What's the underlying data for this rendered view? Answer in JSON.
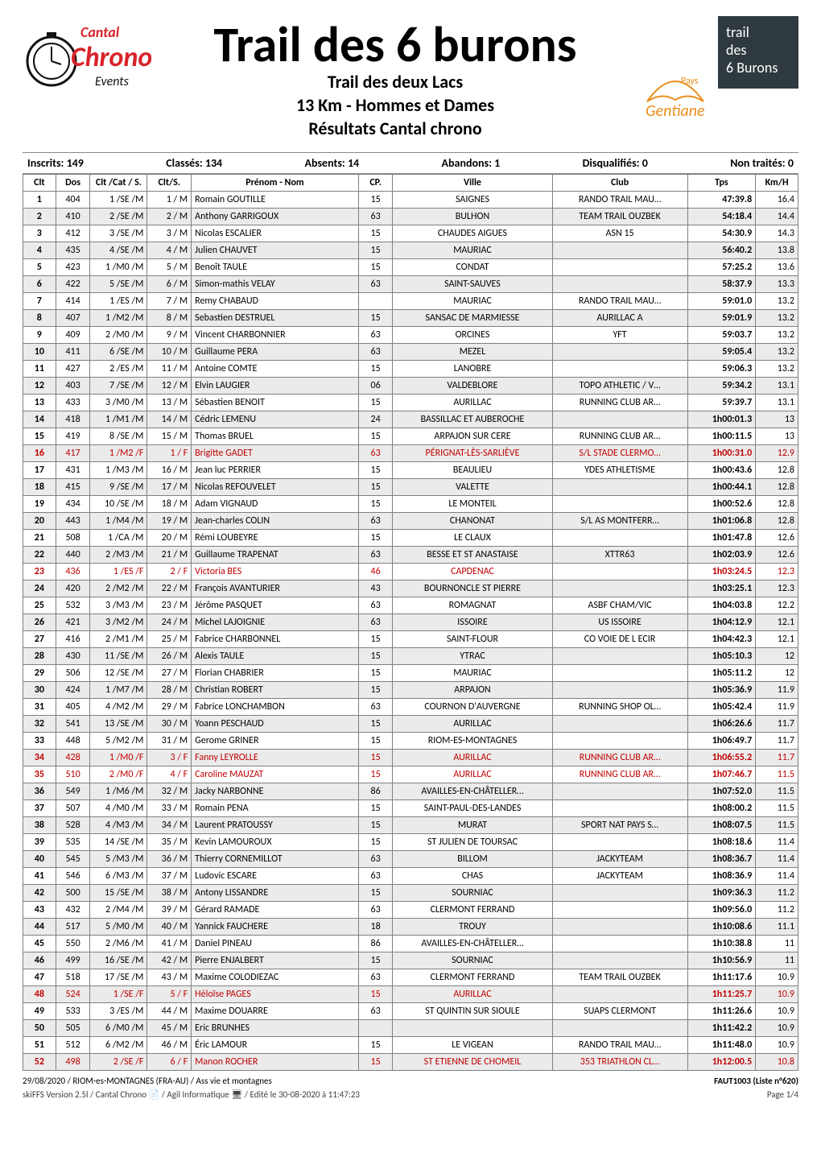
{
  "colors": {
    "text": "#000000",
    "shade_row": "#ebebeb",
    "red_text": "#c00000",
    "grid_border": "#808080",
    "logo_left_red": "#d8232a",
    "logo_left_black": "#111111",
    "logo_right_gentiane_text": "#e98f1d",
    "logo_right_trail_bg": "#2e3a3f",
    "logo_right_trail_text": "#ffffff"
  },
  "header": {
    "title": "Trail des 6 burons",
    "subtitle1": "Trail des deux Lacs",
    "subtitle2": "13 Km - Hommes et Dames",
    "subtitle3": "Résultats Cantal chrono",
    "logo_left": {
      "line1": "Cantal",
      "line2": "Chrono",
      "line3": "Events"
    },
    "logo_right_gentiane": {
      "top": "Pays",
      "main": "Gentiane"
    },
    "logo_right_trail": {
      "l1": "trail",
      "l2": "des",
      "l3": "6 Burons"
    }
  },
  "meta": {
    "inscrits_label": "Inscrits:",
    "inscrits_val": "149",
    "classes_label": "Classés:",
    "classes_val": "134",
    "absents_label": "Absents:",
    "absents_val": "14",
    "abandons_label": "Abandons:",
    "abandons_val": "1",
    "disq_label": "Disqualifiés:",
    "disq_val": "0",
    "nontr_label": "Non traités:",
    "nontr_val": "0"
  },
  "table": {
    "headers": {
      "clt": "Clt",
      "dos": "Dos",
      "catS": "Clt /Cat / S.",
      "cltS": "Clt/S.",
      "name": "Prénom - Nom",
      "cp": "CP.",
      "ville": "Ville",
      "club": "Club",
      "tps": "Tps",
      "kmh": "Km/H"
    },
    "column_align": {
      "clt": "center",
      "dos": "center",
      "catS": "right",
      "cltS": "right",
      "name": "left",
      "cp": "center",
      "ville": "center",
      "club": "center",
      "tps": "right",
      "kmh": "right"
    },
    "rows": [
      {
        "clt": "1",
        "dos": "404",
        "catS": "1 /SE /M",
        "cltS": "1 / M",
        "name": "Romain GOUTILLE",
        "cp": "15",
        "ville": "SAIGNES",
        "club": "RANDO TRAIL MAU…",
        "tps": "47:39.8",
        "kmh": "16.4",
        "red": false
      },
      {
        "clt": "2",
        "dos": "410",
        "catS": "2 /SE /M",
        "cltS": "2 / M",
        "name": "Anthony GARRIGOUX",
        "cp": "63",
        "ville": "BULHON",
        "club": "TEAM TRAIL OUZBEK",
        "tps": "54:18.4",
        "kmh": "14.4",
        "red": false
      },
      {
        "clt": "3",
        "dos": "412",
        "catS": "3 /SE /M",
        "cltS": "3 / M",
        "name": "Nicolas ESCALIER",
        "cp": "15",
        "ville": "CHAUDES AIGUES",
        "club": "ASN 15",
        "tps": "54:30.9",
        "kmh": "14.3",
        "red": false
      },
      {
        "clt": "4",
        "dos": "435",
        "catS": "4 /SE /M",
        "cltS": "4 / M",
        "name": "Julien CHAUVET",
        "cp": "15",
        "ville": "MAURIAC",
        "club": "",
        "tps": "56:40.2",
        "kmh": "13.8",
        "red": false
      },
      {
        "clt": "5",
        "dos": "423",
        "catS": "1 /M0 /M",
        "cltS": "5 / M",
        "name": "Benoît TAULE",
        "cp": "15",
        "ville": "CONDAT",
        "club": "",
        "tps": "57:25.2",
        "kmh": "13.6",
        "red": false
      },
      {
        "clt": "6",
        "dos": "422",
        "catS": "5 /SE /M",
        "cltS": "6 / M",
        "name": "Simon-mathis VELAY",
        "cp": "63",
        "ville": "SAINT-SAUVES",
        "club": "",
        "tps": "58:37.9",
        "kmh": "13.3",
        "red": false
      },
      {
        "clt": "7",
        "dos": "414",
        "catS": "1 /ES /M",
        "cltS": "7 / M",
        "name": "Remy CHABAUD",
        "cp": "",
        "ville": "MAURIAC",
        "club": "RANDO TRAIL MAU…",
        "tps": "59:01.0",
        "kmh": "13.2",
        "red": false
      },
      {
        "clt": "8",
        "dos": "407",
        "catS": "1 /M2 /M",
        "cltS": "8 / M",
        "name": "Sebastien DESTRUEL",
        "cp": "15",
        "ville": "SANSAC DE MARMIESSE",
        "club": "AURILLAC A",
        "tps": "59:01.9",
        "kmh": "13.2",
        "red": false
      },
      {
        "clt": "9",
        "dos": "409",
        "catS": "2 /M0 /M",
        "cltS": "9 / M",
        "name": "Vincent CHARBONNIER",
        "cp": "63",
        "ville": "ORCINES",
        "club": "YFT",
        "tps": "59:03.7",
        "kmh": "13.2",
        "red": false
      },
      {
        "clt": "10",
        "dos": "411",
        "catS": "6 /SE /M",
        "cltS": "10 / M",
        "name": "Guillaume PERA",
        "cp": "63",
        "ville": "MEZEL",
        "club": "",
        "tps": "59:05.4",
        "kmh": "13.2",
        "red": false
      },
      {
        "clt": "11",
        "dos": "427",
        "catS": "2 /ES /M",
        "cltS": "11 / M",
        "name": "Antoine COMTE",
        "cp": "15",
        "ville": "LANOBRE",
        "club": "",
        "tps": "59:06.3",
        "kmh": "13.2",
        "red": false
      },
      {
        "clt": "12",
        "dos": "403",
        "catS": "7 /SE /M",
        "cltS": "12 / M",
        "name": "Elvin LAUGIER",
        "cp": "06",
        "ville": "VALDEBLORE",
        "club": "TOPO ATHLETIC / V…",
        "tps": "59:34.2",
        "kmh": "13.1",
        "red": false
      },
      {
        "clt": "13",
        "dos": "433",
        "catS": "3 /M0 /M",
        "cltS": "13 / M",
        "name": "Sébastien BENOIT",
        "cp": "15",
        "ville": "AURILLAC",
        "club": "RUNNING CLUB AR…",
        "tps": "59:39.7",
        "kmh": "13.1",
        "red": false
      },
      {
        "clt": "14",
        "dos": "418",
        "catS": "1 /M1 /M",
        "cltS": "14 / M",
        "name": "Cédric LEMENU",
        "cp": "24",
        "ville": "BASSILLAC ET AUBEROCHE",
        "club": "",
        "tps": "1h00:01.3",
        "kmh": "13",
        "red": false
      },
      {
        "clt": "15",
        "dos": "419",
        "catS": "8 /SE /M",
        "cltS": "15 / M",
        "name": "Thomas BRUEL",
        "cp": "15",
        "ville": "ARPAJON SUR CERE",
        "club": "RUNNING CLUB AR…",
        "tps": "1h00:11.5",
        "kmh": "13",
        "red": false
      },
      {
        "clt": "16",
        "dos": "417",
        "catS": "1 /M2 /F",
        "cltS": "1 / F",
        "name": "Brigitte GADET",
        "cp": "63",
        "ville": "PÉRIGNAT-LÈS-SARLIÈVE",
        "club": "S/L STADE CLERMO…",
        "tps": "1h00:31.0",
        "kmh": "12.9",
        "red": true
      },
      {
        "clt": "17",
        "dos": "431",
        "catS": "1 /M3 /M",
        "cltS": "16 / M",
        "name": "Jean luc PERRIER",
        "cp": "15",
        "ville": "BEAULIEU",
        "club": "YDES ATHLETISME",
        "tps": "1h00:43.6",
        "kmh": "12.8",
        "red": false
      },
      {
        "clt": "18",
        "dos": "415",
        "catS": "9 /SE /M",
        "cltS": "17 / M",
        "name": "Nicolas REFOUVELET",
        "cp": "15",
        "ville": "VALETTE",
        "club": "",
        "tps": "1h00:44.1",
        "kmh": "12.8",
        "red": false
      },
      {
        "clt": "19",
        "dos": "434",
        "catS": "10 /SE /M",
        "cltS": "18 / M",
        "name": "Adam VIGNAUD",
        "cp": "15",
        "ville": "LE MONTEIL",
        "club": "",
        "tps": "1h00:52.6",
        "kmh": "12.8",
        "red": false
      },
      {
        "clt": "20",
        "dos": "443",
        "catS": "1 /M4 /M",
        "cltS": "19 / M",
        "name": "Jean-charles COLIN",
        "cp": "63",
        "ville": "CHANONAT",
        "club": "S/L AS MONTFERR…",
        "tps": "1h01:06.8",
        "kmh": "12.8",
        "red": false
      },
      {
        "clt": "21",
        "dos": "508",
        "catS": "1 /CA /M",
        "cltS": "20 / M",
        "name": "Rémi LOUBEYRE",
        "cp": "15",
        "ville": "LE CLAUX",
        "club": "",
        "tps": "1h01:47.8",
        "kmh": "12.6",
        "red": false
      },
      {
        "clt": "22",
        "dos": "440",
        "catS": "2 /M3 /M",
        "cltS": "21 / M",
        "name": "Guillaume TRAPENAT",
        "cp": "63",
        "ville": "BESSE ET ST ANASTAISE",
        "club": "XTTR63",
        "tps": "1h02:03.9",
        "kmh": "12.6",
        "red": false
      },
      {
        "clt": "23",
        "dos": "436",
        "catS": "1 /ES /F",
        "cltS": "2 / F",
        "name": "Victoria BES",
        "cp": "46",
        "ville": "CAPDENAC",
        "club": "",
        "tps": "1h03:24.5",
        "kmh": "12.3",
        "red": true
      },
      {
        "clt": "24",
        "dos": "420",
        "catS": "2 /M2 /M",
        "cltS": "22 / M",
        "name": "François AVANTURIER",
        "cp": "43",
        "ville": "BOURNONCLE ST PIERRE",
        "club": "",
        "tps": "1h03:25.1",
        "kmh": "12.3",
        "red": false
      },
      {
        "clt": "25",
        "dos": "532",
        "catS": "3 /M3 /M",
        "cltS": "23 / M",
        "name": "Jérôme PASQUET",
        "cp": "63",
        "ville": "ROMAGNAT",
        "club": "ASBF CHAM/VIC",
        "tps": "1h04:03.8",
        "kmh": "12.2",
        "red": false
      },
      {
        "clt": "26",
        "dos": "421",
        "catS": "3 /M2 /M",
        "cltS": "24 / M",
        "name": "Michel LAJOIGNIE",
        "cp": "63",
        "ville": "ISSOIRE",
        "club": "US ISSOIRE",
        "tps": "1h04:12.9",
        "kmh": "12.1",
        "red": false
      },
      {
        "clt": "27",
        "dos": "416",
        "catS": "2 /M1 /M",
        "cltS": "25 / M",
        "name": "Fabrice CHARBONNEL",
        "cp": "15",
        "ville": "SAINT-FLOUR",
        "club": "CO VOIE DE L ECIR",
        "tps": "1h04:42.3",
        "kmh": "12.1",
        "red": false
      },
      {
        "clt": "28",
        "dos": "430",
        "catS": "11 /SE /M",
        "cltS": "26 / M",
        "name": "Alexis TAULE",
        "cp": "15",
        "ville": "YTRAC",
        "club": "",
        "tps": "1h05:10.3",
        "kmh": "12",
        "red": false
      },
      {
        "clt": "29",
        "dos": "506",
        "catS": "12 /SE /M",
        "cltS": "27 / M",
        "name": "Florian CHABRIER",
        "cp": "15",
        "ville": "MAURIAC",
        "club": "",
        "tps": "1h05:11.2",
        "kmh": "12",
        "red": false
      },
      {
        "clt": "30",
        "dos": "424",
        "catS": "1 /M7 /M",
        "cltS": "28 / M",
        "name": "Christian ROBERT",
        "cp": "15",
        "ville": "ARPAJON",
        "club": "",
        "tps": "1h05:36.9",
        "kmh": "11.9",
        "red": false
      },
      {
        "clt": "31",
        "dos": "405",
        "catS": "4 /M2 /M",
        "cltS": "29 / M",
        "name": "Fabrice LONCHAMBON",
        "cp": "63",
        "ville": "COURNON D'AUVERGNE",
        "club": "RUNNING SHOP OL…",
        "tps": "1h05:42.4",
        "kmh": "11.9",
        "red": false
      },
      {
        "clt": "32",
        "dos": "541",
        "catS": "13 /SE /M",
        "cltS": "30 / M",
        "name": "Yoann PESCHAUD",
        "cp": "15",
        "ville": "AURILLAC",
        "club": "",
        "tps": "1h06:26.6",
        "kmh": "11.7",
        "red": false
      },
      {
        "clt": "33",
        "dos": "448",
        "catS": "5 /M2 /M",
        "cltS": "31 / M",
        "name": "Gerome GRINER",
        "cp": "15",
        "ville": "RIOM-ES-MONTAGNES",
        "club": "",
        "tps": "1h06:49.7",
        "kmh": "11.7",
        "red": false
      },
      {
        "clt": "34",
        "dos": "428",
        "catS": "1 /M0 /F",
        "cltS": "3 / F",
        "name": "Fanny LEYROLLE",
        "cp": "15",
        "ville": "AURILLAC",
        "club": "RUNNING CLUB AR…",
        "tps": "1h06:55.2",
        "kmh": "11.7",
        "red": true
      },
      {
        "clt": "35",
        "dos": "510",
        "catS": "2 /M0 /F",
        "cltS": "4 / F",
        "name": "Caroline MAUZAT",
        "cp": "15",
        "ville": "AURILLAC",
        "club": "RUNNING CLUB AR…",
        "tps": "1h07:46.7",
        "kmh": "11.5",
        "red": true
      },
      {
        "clt": "36",
        "dos": "549",
        "catS": "1 /M6 /M",
        "cltS": "32 / M",
        "name": "Jacky NARBONNE",
        "cp": "86",
        "ville": "AVAILLES-EN-CHÂTELLER…",
        "club": "",
        "tps": "1h07:52.0",
        "kmh": "11.5",
        "red": false
      },
      {
        "clt": "37",
        "dos": "507",
        "catS": "4 /M0 /M",
        "cltS": "33 / M",
        "name": "Romain PENA",
        "cp": "15",
        "ville": "SAINT-PAUL-DES-LANDES",
        "club": "",
        "tps": "1h08:00.2",
        "kmh": "11.5",
        "red": false
      },
      {
        "clt": "38",
        "dos": "528",
        "catS": "4 /M3 /M",
        "cltS": "34 / M",
        "name": "Laurent PRATOUSSY",
        "cp": "15",
        "ville": "MURAT",
        "club": "SPORT NAT PAYS S…",
        "tps": "1h08:07.5",
        "kmh": "11.5",
        "red": false
      },
      {
        "clt": "39",
        "dos": "535",
        "catS": "14 /SE /M",
        "cltS": "35 / M",
        "name": "Kevin LAMOUROUX",
        "cp": "15",
        "ville": "ST JULIEN DE TOURSAC",
        "club": "",
        "tps": "1h08:18.6",
        "kmh": "11.4",
        "red": false
      },
      {
        "clt": "40",
        "dos": "545",
        "catS": "5 /M3 /M",
        "cltS": "36 / M",
        "name": "Thierry CORNEMILLOT",
        "cp": "63",
        "ville": "BILLOM",
        "club": "JACKYTEAM",
        "tps": "1h08:36.7",
        "kmh": "11.4",
        "red": false
      },
      {
        "clt": "41",
        "dos": "546",
        "catS": "6 /M3 /M",
        "cltS": "37 / M",
        "name": "Ludovic ESCARE",
        "cp": "63",
        "ville": "CHAS",
        "club": "JACKYTEAM",
        "tps": "1h08:36.9",
        "kmh": "11.4",
        "red": false
      },
      {
        "clt": "42",
        "dos": "500",
        "catS": "15 /SE /M",
        "cltS": "38 / M",
        "name": "Antony LISSANDRE",
        "cp": "15",
        "ville": "SOURNIAC",
        "club": "",
        "tps": "1h09:36.3",
        "kmh": "11.2",
        "red": false
      },
      {
        "clt": "43",
        "dos": "432",
        "catS": "2 /M4 /M",
        "cltS": "39 / M",
        "name": "Gérard RAMADE",
        "cp": "63",
        "ville": "CLERMONT FERRAND",
        "club": "",
        "tps": "1h09:56.0",
        "kmh": "11.2",
        "red": false
      },
      {
        "clt": "44",
        "dos": "517",
        "catS": "5 /M0 /M",
        "cltS": "40 / M",
        "name": "Yannick FAUCHERE",
        "cp": "18",
        "ville": "TROUY",
        "club": "",
        "tps": "1h10:08.6",
        "kmh": "11.1",
        "red": false
      },
      {
        "clt": "45",
        "dos": "550",
        "catS": "2 /M6 /M",
        "cltS": "41 / M",
        "name": "Daniel PINEAU",
        "cp": "86",
        "ville": "AVAILLES-EN-CHÂTELLER…",
        "club": "",
        "tps": "1h10:38.8",
        "kmh": "11",
        "red": false
      },
      {
        "clt": "46",
        "dos": "499",
        "catS": "16 /SE /M",
        "cltS": "42 / M",
        "name": "Pierre ENJALBERT",
        "cp": "15",
        "ville": "SOURNIAC",
        "club": "",
        "tps": "1h10:56.9",
        "kmh": "11",
        "red": false
      },
      {
        "clt": "47",
        "dos": "518",
        "catS": "17 /SE /M",
        "cltS": "43 / M",
        "name": "Maxime COLODIEZAC",
        "cp": "63",
        "ville": "CLERMONT FERRAND",
        "club": "TEAM TRAIL OUZBEK",
        "tps": "1h11:17.6",
        "kmh": "10.9",
        "red": false
      },
      {
        "clt": "48",
        "dos": "524",
        "catS": "1 /SE /F",
        "cltS": "5 / F",
        "name": "Héloïse PAGES",
        "cp": "15",
        "ville": "AURILLAC",
        "club": "",
        "tps": "1h11:25.7",
        "kmh": "10.9",
        "red": true
      },
      {
        "clt": "49",
        "dos": "533",
        "catS": "3 /ES /M",
        "cltS": "44 / M",
        "name": "Maxime DOUARRE",
        "cp": "63",
        "ville": "ST QUINTIN SUR SIOULE",
        "club": "SUAPS CLERMONT",
        "tps": "1h11:26.6",
        "kmh": "10.9",
        "red": false
      },
      {
        "clt": "50",
        "dos": "505",
        "catS": "6 /M0 /M",
        "cltS": "45 / M",
        "name": "Eric BRUNHES",
        "cp": "",
        "ville": "",
        "club": "",
        "tps": "1h11:42.2",
        "kmh": "10.9",
        "red": false
      },
      {
        "clt": "51",
        "dos": "512",
        "catS": "6 /M2 /M",
        "cltS": "46 / M",
        "name": "Éric LAMOUR",
        "cp": "15",
        "ville": "LE VIGEAN",
        "club": "RANDO TRAIL MAU…",
        "tps": "1h11:48.0",
        "kmh": "10.9",
        "red": false
      },
      {
        "clt": "52",
        "dos": "498",
        "catS": "2 /SE /F",
        "cltS": "6 / F",
        "name": "Manon ROCHER",
        "cp": "15",
        "ville": "ST ETIENNE DE CHOMEIL",
        "club": "353 TRIATHLON CL…",
        "tps": "1h12:00.5",
        "kmh": "10.8",
        "red": true
      }
    ]
  },
  "footer": {
    "left": "29/08/2020 / RIOM-es-MONTAGNES (FRA-AU) / Ass vie et montagnes",
    "right": "FAUT1003 (Liste n°620)",
    "left2": "skiFFS Version 2.5l / Cantal Chrono   📄  / Agil Informatique  🖥  / Edité le 30-08-2020 à 11:47:23",
    "right2": "Page 1/4"
  }
}
